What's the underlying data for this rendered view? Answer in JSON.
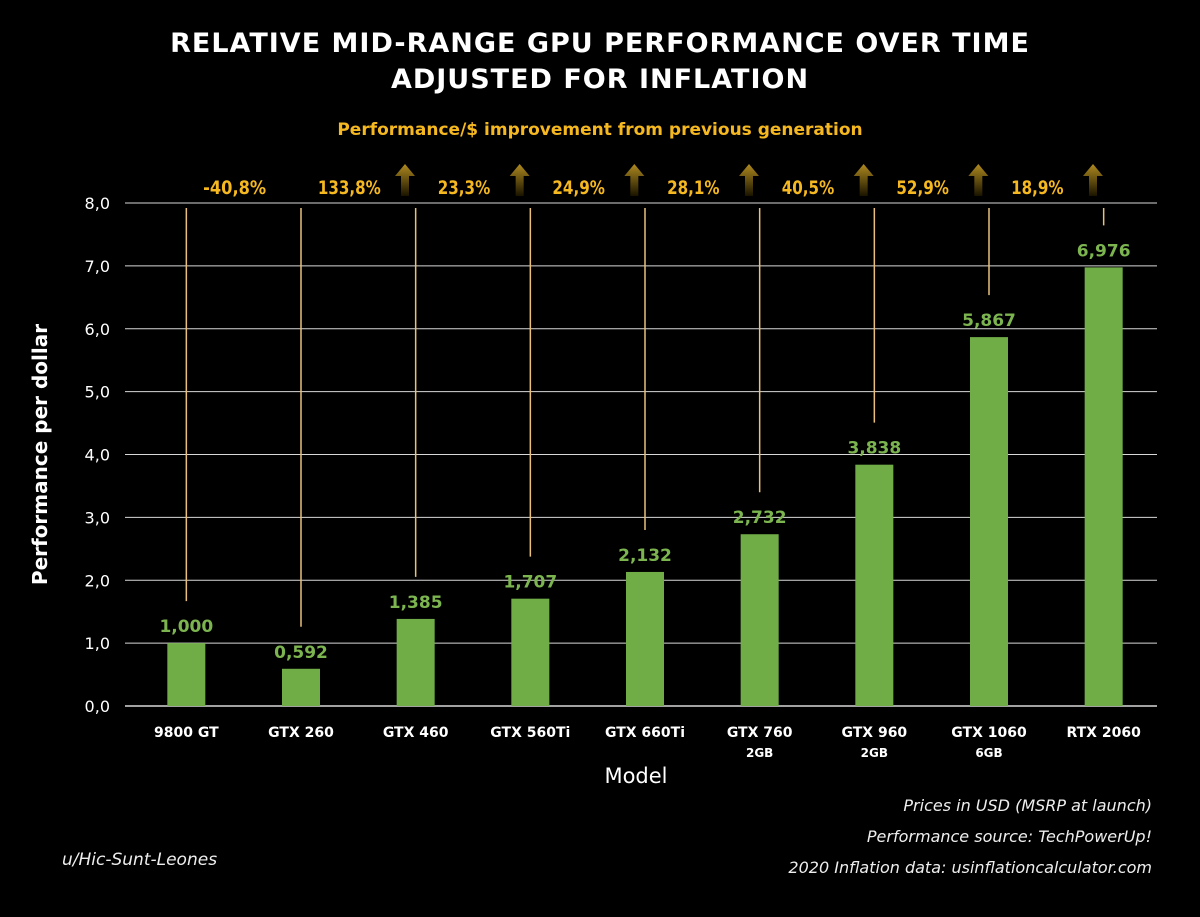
{
  "chart_data": {
    "type": "bar",
    "title": "RELATIVE MID-RANGE GPU PERFORMANCE OVER TIME",
    "subtitle": "ADJUSTED FOR INFLATION",
    "annotation_header": "Performance/$ improvement from previous generation",
    "xlabel": "Model",
    "ylabel": "Performance per dollar",
    "ylim": [
      0,
      8
    ],
    "yticks": [
      "0,0",
      "1,0",
      "2,0",
      "3,0",
      "4,0",
      "5,0",
      "6,0",
      "7,0",
      "8,0"
    ],
    "grid": true,
    "categories": [
      {
        "name": "9800 GT",
        "sub": ""
      },
      {
        "name": "GTX 260",
        "sub": ""
      },
      {
        "name": "GTX 460",
        "sub": ""
      },
      {
        "name": "GTX 560Ti",
        "sub": ""
      },
      {
        "name": "GTX 660Ti",
        "sub": ""
      },
      {
        "name": "GTX 760",
        "sub": "2GB"
      },
      {
        "name": "GTX 960",
        "sub": "2GB"
      },
      {
        "name": "GTX 1060",
        "sub": "6GB"
      },
      {
        "name": "RTX 2060",
        "sub": ""
      }
    ],
    "values": [
      1.0,
      0.592,
      1.385,
      1.707,
      2.132,
      2.732,
      3.838,
      5.867,
      6.976
    ],
    "value_labels": [
      "1,000",
      "0,592",
      "1,385",
      "1,707",
      "2,132",
      "2,732",
      "3,838",
      "5,867",
      "6,976"
    ],
    "improvements": [
      "-40,8%",
      "133,8%",
      "23,3%",
      "24,9%",
      "28,1%",
      "40,5%",
      "52,9%",
      "18,9%"
    ],
    "improvement_up_arrow": [
      false,
      true,
      true,
      true,
      true,
      true,
      true,
      true
    ],
    "colors": {
      "bar": "#70ad47",
      "value_label": "#7cb550",
      "improvement": "#f5b820",
      "leader_line": "#e8c07a",
      "grid": "#d8d8d8"
    }
  },
  "notes": [
    "Prices in USD (MSRP at launch)",
    "Performance source: TechPowerUp!",
    "2020 Inflation data: usinflationcalculator.com"
  ],
  "author": "u/Hic-Sunt-Leones"
}
